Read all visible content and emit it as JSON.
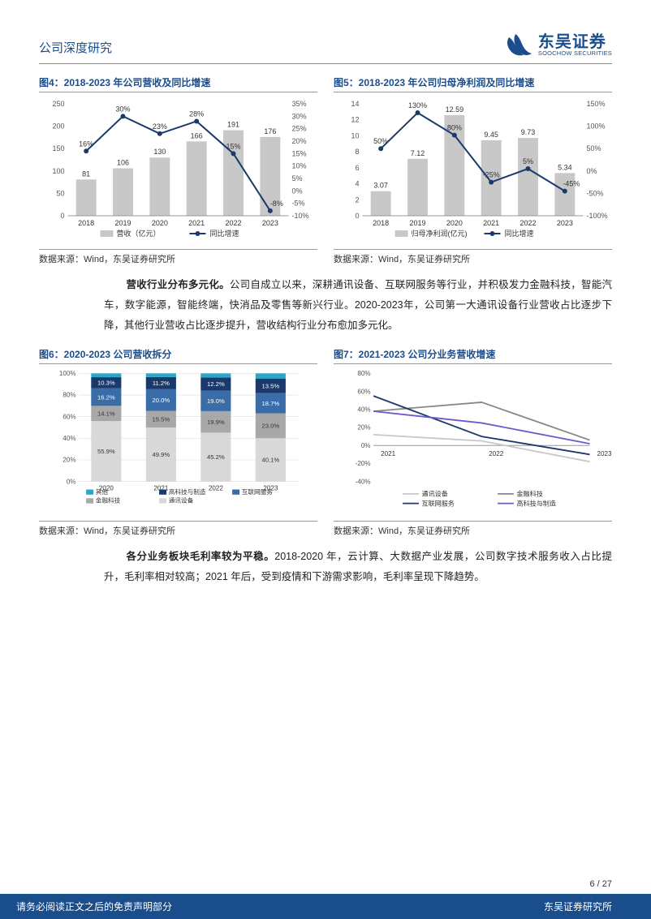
{
  "header": {
    "title": "公司深度研究",
    "brand_cn": "东吴证券",
    "brand_en": "SOOCHOW SECURITIES"
  },
  "colors": {
    "brand_blue": "#1a4d8c",
    "bar_gray": "#c8c8c8",
    "line_navy": "#1a3a6c",
    "grid": "#d0d0d0",
    "text": "#333333",
    "seg_other": "#2aa8c9",
    "seg_hitech": "#1a3a6c",
    "seg_internet": "#3a6ca8",
    "seg_fintech": "#a8a8a8",
    "seg_comm": "#d8d8d8",
    "line_comm": "#c8c8c8",
    "line_fintech": "#888888",
    "line_internet": "#1a3a6c",
    "line_hitech": "#6a5acd"
  },
  "fig4": {
    "title": "图4：2018-2023 年公司营收及同比增速",
    "source": "数据来源：Wind，东吴证券研究所",
    "years": [
      "2018",
      "2019",
      "2020",
      "2021",
      "2022",
      "2023"
    ],
    "bar_values": [
      81,
      106,
      130,
      166,
      191,
      176
    ],
    "line_values": [
      16,
      30,
      23,
      28,
      15,
      -8
    ],
    "yleft_max": 250,
    "yleft_step": 50,
    "yright_min": -10,
    "yright_max": 35,
    "yright_step": 5,
    "legend_bar": "营收（亿元）",
    "legend_line": "同比增速"
  },
  "fig5": {
    "title": "图5：2018-2023 年公司归母净利润及同比增速",
    "source": "数据来源：Wind，东吴证券研究所",
    "years": [
      "2018",
      "2019",
      "2020",
      "2021",
      "2022",
      "2023"
    ],
    "bar_values": [
      3.07,
      7.12,
      12.59,
      9.45,
      9.73,
      5.34
    ],
    "line_values": [
      50,
      130,
      80,
      -25,
      5,
      -45
    ],
    "yleft_max": 14,
    "yleft_step": 2,
    "yright_min": -100,
    "yright_max": 150,
    "yright_step": 50,
    "legend_bar": "归母净利润(亿元)",
    "legend_line": "同比增速"
  },
  "para1": {
    "bold": "营收行业分布多元化。",
    "text": "公司自成立以来，深耕通讯设备、互联网服务等行业，并积极发力金融科技，智能汽车，数字能源，智能终端，快消品及零售等新兴行业。2020-2023年，公司第一大通讯设备行业营收占比逐步下降，其他行业营收占比逐步提升，营收结构行业分布愈加多元化。"
  },
  "fig6": {
    "title": "图6：2020-2023 公司营收拆分",
    "source": "数据来源：Wind，东吴证券研究所",
    "years": [
      "2020",
      "2021",
      "2022",
      "2023"
    ],
    "segments": [
      "通讯设备",
      "金融科技",
      "互联网服务",
      "高科技与制造",
      "其他"
    ],
    "seg_keys": [
      "comm",
      "fintech",
      "internet",
      "hitech",
      "other"
    ],
    "data": {
      "2020": {
        "comm": 55.9,
        "fintech": 14.1,
        "internet": 16.2,
        "hitech": 10.3,
        "other": 3.5
      },
      "2021": {
        "comm": 49.9,
        "fintech": 15.5,
        "internet": 20.0,
        "hitech": 11.2,
        "other": 3.4
      },
      "2022": {
        "comm": 45.2,
        "fintech": 19.9,
        "internet": 19.0,
        "hitech": 12.2,
        "other": 3.7
      },
      "2023": {
        "comm": 40.1,
        "fintech": 23.0,
        "internet": 18.7,
        "hitech": 13.5,
        "other": 4.7
      }
    },
    "legend": [
      "其他",
      "高科技与制造",
      "互联网服务",
      "金融科技",
      "通讯设备"
    ]
  },
  "fig7": {
    "title": "图7：2021-2023 公司分业务营收增速",
    "source": "数据来源：Wind，东吴证券研究所",
    "years": [
      "2021",
      "2022",
      "2023"
    ],
    "ymin": -40,
    "ymax": 80,
    "ystep": 20,
    "series": {
      "通讯设备": {
        "key": "comm",
        "vals": [
          12,
          5,
          -18
        ]
      },
      "金融科技": {
        "key": "fintech",
        "vals": [
          38,
          48,
          6
        ]
      },
      "互联网服务": {
        "key": "internet",
        "vals": [
          55,
          10,
          -10
        ]
      },
      "高科技与制造": {
        "key": "hitech",
        "vals": [
          38,
          25,
          2
        ]
      }
    },
    "legend": [
      "通讯设备",
      "金融科技",
      "互联网服务",
      "高科技与制造"
    ]
  },
  "para2": {
    "bold": "各分业务板块毛利率较为平稳。",
    "text": "2018-2020 年，云计算、大数据产业发展，公司数字技术服务收入占比提升，毛利率相对较高；2021 年后，受到疫情和下游需求影响，毛利率呈现下降趋势。"
  },
  "footer": {
    "page": "6 / 27",
    "disclaimer": "请务必阅读正文之后的免责声明部分",
    "inst": "东吴证券研究所"
  }
}
